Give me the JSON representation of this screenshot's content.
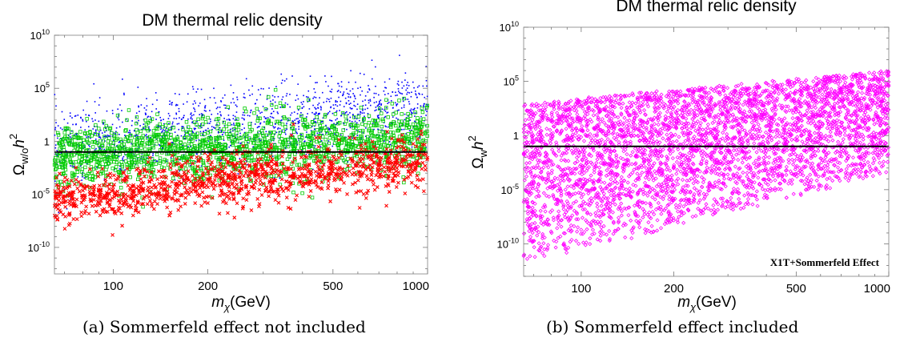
{
  "captions": [
    "(a) Sommerfeld effect not included",
    "(b) Sommerfeld effect included"
  ],
  "chart_data": [
    {
      "type": "scatter",
      "title": "DM thermal relic density",
      "xlabel": "m_χ(GeV)",
      "ylabel": "Ω_w/o h²",
      "ylabel_parts": {
        "base": "Ω",
        "sub": "w/o",
        "tail": "h",
        "sup": "2"
      },
      "xlabel_parts": {
        "base": "m",
        "sub": "χ",
        "tail": "(GeV)"
      },
      "x_scale": "log",
      "y_scale": "log",
      "xlim": [
        65,
        1000
      ],
      "ylim_log10": [
        -12.5,
        10
      ],
      "xticks": [
        100,
        200,
        500,
        1000
      ],
      "xtick_labels": [
        "100",
        "200",
        "500",
        "1000"
      ],
      "yticks_log10": [
        -10,
        -5,
        0,
        5,
        10
      ],
      "ytick_labels": [
        "10^-10",
        "10^-5",
        "1",
        "10^5",
        "10^10"
      ],
      "reference_line": {
        "y": 0.1,
        "color": "#000000"
      },
      "grid": false,
      "legend": "none",
      "series_colors": [
        "#0000ff",
        "#00cc00",
        "#ff0000"
      ],
      "series": [
        {
          "marker": "dot",
          "color": "#0000ff",
          "x_range": [
            65,
            1000
          ],
          "log10_y_center_at_min": -0.5,
          "log10_y_center_at_max": 3.2,
          "log10_spread": 3.6,
          "n": 1500
        },
        {
          "marker": "square",
          "color": "#00cc00",
          "x_range": [
            65,
            1000
          ],
          "log10_y_center_at_min": -1.5,
          "log10_y_center_at_max": 0.2,
          "log10_spread": 3.0,
          "n": 1600
        },
        {
          "marker": "cross",
          "color": "#ff0000",
          "x_range": [
            65,
            1000
          ],
          "log10_y_center_at_min": -5.5,
          "log10_y_center_at_max": -1.8,
          "log10_spread": 2.5,
          "n": 1200
        }
      ]
    },
    {
      "type": "scatter",
      "title": "DM thermal relic density",
      "xlabel": "m_χ(GeV)",
      "ylabel": "Ω_w h²",
      "ylabel_parts": {
        "base": "Ω",
        "sub": "w",
        "tail": "h",
        "sup": "2"
      },
      "xlabel_parts": {
        "base": "m",
        "sub": "χ",
        "tail": "(GeV)"
      },
      "annotation": "X1T+Sommerfeld Effect",
      "x_scale": "log",
      "y_scale": "log",
      "xlim": [
        65,
        1000
      ],
      "ylim_log10": [
        -13,
        10
      ],
      "xticks": [
        100,
        200,
        500,
        1000
      ],
      "xtick_labels": [
        "100",
        "200",
        "500",
        "1000"
      ],
      "yticks_log10": [
        -10,
        -5,
        0,
        5,
        10
      ],
      "ytick_labels": [
        "10^-10",
        "10^-5",
        "1",
        "10^5",
        "10^10"
      ],
      "reference_line": {
        "y": 0.1,
        "color": "#000000"
      },
      "grid": false,
      "legend": "none",
      "series_colors": [
        "#ff00ff"
      ],
      "series": [
        {
          "marker": "diamond",
          "color": "#ff00ff",
          "x_range": [
            65,
            1000
          ],
          "log10_y_low_at_min": -12,
          "log10_y_high_at_min": 3.0,
          "log10_y_low_at_max": -3.5,
          "log10_y_high_at_max": 6.0,
          "n": 4200
        }
      ]
    }
  ]
}
